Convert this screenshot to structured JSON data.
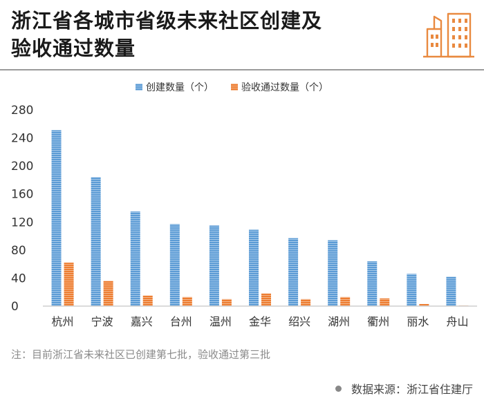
{
  "header": {
    "title_line1": "浙江省各城市省级未来社区创建及",
    "title_line2": "验收通过数量",
    "logo_icon": "buildings-icon"
  },
  "chart_data": {
    "type": "bar",
    "categories": [
      "杭州",
      "宁波",
      "嘉兴",
      "台州",
      "温州",
      "金华",
      "绍兴",
      "湖州",
      "衢州",
      "丽水",
      "舟山"
    ],
    "series": [
      {
        "name": "创建数量（个）",
        "color": "#5b9bd5",
        "values": [
          251,
          184,
          135,
          117,
          115,
          109,
          97,
          94,
          64,
          46,
          42
        ]
      },
      {
        "name": "验收通过数量（个）",
        "color": "#ed7d31",
        "values": [
          62,
          36,
          15,
          13,
          10,
          18,
          10,
          13,
          11,
          3,
          1
        ]
      }
    ],
    "yticks": [
      "0",
      "40",
      "80",
      "120",
      "160",
      "200",
      "240",
      "280"
    ],
    "ylim": [
      0,
      280
    ],
    "legend_position": "top-center",
    "grid": false
  },
  "footer": {
    "note": "注：目前浙江省未来社区已创建第七批，验收通过第三批",
    "source": "数据来源：浙江省住建厅"
  }
}
